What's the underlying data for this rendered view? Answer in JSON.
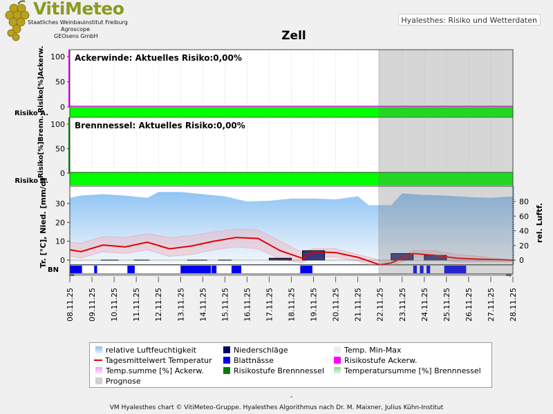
{
  "header": {
    "logo_title": "VitiMeteo",
    "logo_lines": [
      "Staatliches Weinbauinstitut Freiburg",
      "Agroscope",
      "GEOsens GmbH"
    ],
    "tab_label": "Hyalesthes: Risiko und Wetterdaten"
  },
  "chart_data": {
    "type": "line",
    "title": "Zell",
    "dates": [
      "08.11.25",
      "09.11.25",
      "10.11.25",
      "11.11.25",
      "12.11.25",
      "13.11.25",
      "14.11.25",
      "15.11.25",
      "16.11.25",
      "17.11.25",
      "18.11.25",
      "19.11.25",
      "20.11.25",
      "21.11.25",
      "22.11.25",
      "23.11.25",
      "24.11.25",
      "25.11.25",
      "26.11.25",
      "27.11.25",
      "28.11.25"
    ],
    "prognose_from": "22.11.25",
    "panels": [
      {
        "name": "ackerwinde",
        "title": "Ackerwinde: Aktuelles Risiko:0,00%",
        "ylabel": "Risiko[%]Ackerw.",
        "risk_label": "Risiko A.",
        "ylim": [
          0,
          100
        ],
        "yticks": [
          0,
          50,
          100
        ],
        "risk_values": [
          0,
          0,
          0,
          0,
          0,
          0,
          0,
          0,
          0,
          0,
          0,
          0,
          0,
          0,
          0,
          0,
          0,
          0,
          0,
          0,
          0
        ],
        "risk_level_color": "#00ff00"
      },
      {
        "name": "brennnessel",
        "title": "Brennnessel: Aktuelles Risiko:0,00%",
        "ylabel": "Risiko[%]Brenn.",
        "risk_label": "Risiko B.",
        "ylim": [
          0,
          100
        ],
        "yticks": [
          0,
          50,
          100
        ],
        "risk_values": [
          0,
          0,
          0,
          0,
          0,
          0,
          0,
          0,
          0,
          0,
          0,
          0,
          0,
          0,
          0,
          0,
          0,
          0,
          0,
          0,
          0
        ],
        "risk_level_color": "#00ff00"
      }
    ],
    "weather": {
      "ylabel_left": "Tr. [°C], Nied. [mm/d]",
      "ylabel_right": "rel. Luftf.",
      "left_ylim": [
        -2,
        40
      ],
      "left_yticks": [
        0,
        10,
        20,
        30
      ],
      "right_ylim": [
        -4,
        96
      ],
      "right_yticks": [
        0,
        20,
        40,
        60,
        80
      ],
      "humidity": [
        85,
        88,
        90,
        88,
        85,
        93,
        93,
        90,
        87,
        80,
        81,
        84,
        84,
        83,
        87,
        75,
        75,
        91,
        89,
        88,
        86,
        85,
        87
      ],
      "humidity_x": [
        0,
        0.5,
        1.5,
        2.5,
        3.5,
        4,
        5,
        6,
        7,
        8,
        9,
        10,
        11,
        12,
        13,
        13.5,
        14.5,
        15,
        16,
        17,
        18,
        19,
        20
      ],
      "temp_mean": [
        5.5,
        4.5,
        8,
        7,
        9.5,
        6,
        7.5,
        10,
        12,
        11.5,
        5,
        1,
        4.5,
        4,
        1.5,
        -2.5,
        -1.5,
        3.5,
        2.5,
        1,
        0.5,
        0
      ],
      "temp_x": [
        0,
        0.5,
        1.5,
        2.5,
        3.5,
        4.5,
        5.5,
        6.5,
        7.5,
        8.5,
        9.5,
        10.5,
        11,
        12,
        13,
        14,
        14.5,
        15.5,
        16.5,
        17.5,
        18.5,
        20
      ],
      "temp_max": [
        9.5,
        9,
        12.5,
        12,
        14,
        12,
        13,
        15,
        16.5,
        16,
        10,
        4,
        6,
        6,
        3,
        0,
        0,
        5,
        5,
        3,
        2,
        0
      ],
      "temp_min": [
        2,
        1,
        4.5,
        3.5,
        5.5,
        2,
        3,
        5.5,
        7,
        6,
        0.5,
        -1.5,
        2,
        1.5,
        -0.5,
        -4,
        -3,
        1.5,
        0.5,
        -1,
        -1,
        -1
      ],
      "precip": [
        0,
        0,
        0,
        0,
        0,
        0,
        0,
        0,
        0,
        0,
        1,
        0,
        5,
        0,
        0,
        0,
        0,
        3.5,
        0,
        2.5,
        0,
        0
      ],
      "precip_x": [
        0,
        1,
        2,
        3,
        4,
        5,
        6,
        7,
        8,
        9,
        9.5,
        10,
        11,
        12,
        13,
        14,
        15,
        15,
        16,
        16.5,
        17,
        18
      ],
      "leaf_wetness_days": [
        0,
        1.1,
        2.6,
        5,
        5.6,
        6.4,
        7.3,
        10.4,
        15.5,
        15.8,
        16.1,
        16.9
      ],
      "leaf_wetness_widths": [
        0.5,
        0.12,
        0.3,
        0.55,
        0.7,
        0.2,
        0.4,
        0.5,
        0.15,
        0.15,
        0.15,
        0.9
      ],
      "bn_label": "BN"
    }
  },
  "legend": [
    {
      "label": "relative Luftfeuchtigkeit",
      "swatch": "gradient-blue"
    },
    {
      "label": "Niederschläge",
      "swatch": "#000066"
    },
    {
      "label": "Temp. Min-Max",
      "swatch": "#eeeeee"
    },
    {
      "label": "Tagesmittelwert Temperatur",
      "swatch": "line-red"
    },
    {
      "label": "Blattnässe",
      "swatch": "#0000ee"
    },
    {
      "label": "Risikostufe Ackerw.",
      "swatch": "#ff00ff"
    },
    {
      "label": "Temp.summe [%] Ackerw.",
      "swatch": "gradient-pink"
    },
    {
      "label": "Risikostufe Brennnessel",
      "swatch": "#008000"
    },
    {
      "label": "Temperatursumme [%] Brennnessel",
      "swatch": "gradient-green"
    },
    {
      "label": "Prognose",
      "swatch": "#d0d0d0"
    }
  ],
  "footer": {
    "text": "VM Hyalesthes chart © VitiMeteo-Gruppe. Hyalesthes Algorithmus nach Dr. M. Maixner, Julius Kühn-Institut",
    "dash": "-"
  }
}
